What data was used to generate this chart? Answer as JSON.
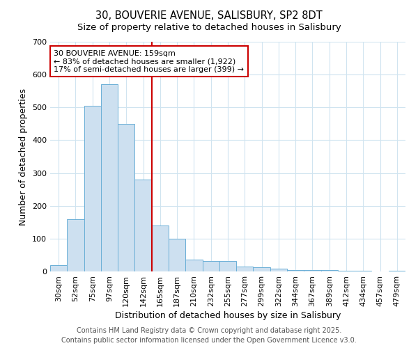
{
  "title_line1": "30, BOUVERIE AVENUE, SALISBURY, SP2 8DT",
  "title_line2": "Size of property relative to detached houses in Salisbury",
  "xlabel": "Distribution of detached houses by size in Salisbury",
  "ylabel": "Number of detached properties",
  "bar_labels": [
    "30sqm",
    "52sqm",
    "75sqm",
    "97sqm",
    "120sqm",
    "142sqm",
    "165sqm",
    "187sqm",
    "210sqm",
    "232sqm",
    "255sqm",
    "277sqm",
    "299sqm",
    "322sqm",
    "344sqm",
    "367sqm",
    "389sqm",
    "412sqm",
    "434sqm",
    "457sqm",
    "479sqm"
  ],
  "bar_values": [
    20,
    160,
    505,
    570,
    450,
    280,
    140,
    100,
    37,
    32,
    32,
    15,
    12,
    8,
    5,
    5,
    5,
    2,
    2,
    1,
    3
  ],
  "bar_color": "#cde0f0",
  "bar_edge_color": "#6aafd6",
  "annotation_text": "30 BOUVERIE AVENUE: 159sqm\n← 83% of detached houses are smaller (1,922)\n17% of semi-detached houses are larger (399) →",
  "vline_x": 6.0,
  "vline_color": "#cc0000",
  "ylim": [
    0,
    700
  ],
  "yticks": [
    0,
    100,
    200,
    300,
    400,
    500,
    600,
    700
  ],
  "annotation_box_color": "#ffffff",
  "annotation_box_edge": "#cc0000",
  "footer_line1": "Contains HM Land Registry data © Crown copyright and database right 2025.",
  "footer_line2": "Contains public sector information licensed under the Open Government Licence v3.0.",
  "background_color": "#ffffff",
  "plot_bg_color": "#ffffff",
  "grid_color": "#d0e4f0",
  "title_fontsize": 10.5,
  "subtitle_fontsize": 9.5,
  "axis_label_fontsize": 9,
  "tick_fontsize": 8,
  "footer_fontsize": 7,
  "annotation_fontsize": 8
}
